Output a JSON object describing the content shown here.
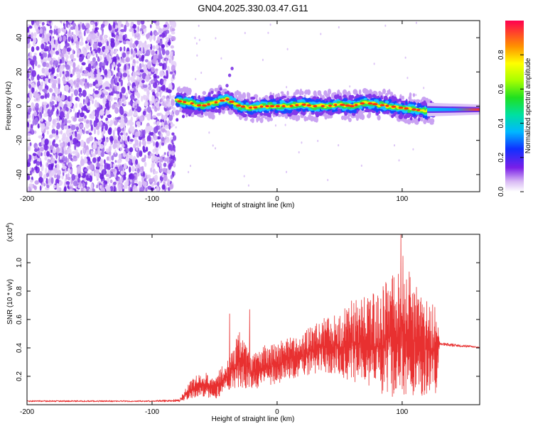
{
  "chart_data": [
    {
      "type": "heatmap",
      "title": "GN04.2025.330.03.47.G11",
      "xlabel": "Height of straight line (km)",
      "ylabel": "Frequency (Hz)",
      "xlim": [
        -200,
        162
      ],
      "ylim": [
        -50,
        50
      ],
      "xticks": [
        -200,
        -100,
        0,
        100
      ],
      "xtick_labels": [
        "-200",
        "-100",
        "0",
        "100"
      ],
      "yticks": [
        -40,
        -20,
        0,
        20,
        40
      ],
      "ytick_labels": [
        "-40",
        "-20",
        "0",
        "20",
        "40"
      ],
      "colorbar": {
        "label": "Normalized spectral amplitude",
        "range": [
          0,
          1
        ],
        "ticks": [
          0,
          0.2,
          0.4,
          0.6,
          0.8
        ],
        "tick_labels": [
          "0.0",
          "0.2",
          "0.4",
          "0.6",
          "0.8"
        ]
      },
      "ridge": {
        "x": [
          -80,
          -70,
          -60,
          -50,
          -40,
          -30,
          -20,
          -10,
          0,
          10,
          20,
          30,
          40,
          50,
          60,
          70,
          80,
          90,
          100,
          110,
          120,
          140,
          162
        ],
        "y": [
          3,
          2,
          0,
          2,
          4,
          0,
          -1,
          0,
          0,
          0,
          1,
          0,
          0,
          1,
          0,
          2,
          1,
          0,
          -1,
          -2,
          -3,
          -2,
          -2
        ]
      }
    },
    {
      "type": "line",
      "xlabel": "Height of straight line (km)",
      "ylabel": "SNR (10 * v/v)",
      "multiplier_base": "(x10",
      "multiplier_exp": "4",
      "multiplier_close": ")",
      "xlim": [
        -200,
        162
      ],
      "ylim": [
        0,
        1.2
      ],
      "xticks": [
        -200,
        -100,
        0,
        100
      ],
      "xtick_labels": [
        "-200",
        "-100",
        "0",
        "100"
      ],
      "yticks": [
        0.2,
        0.4,
        0.6,
        0.8,
        1.0
      ],
      "ytick_labels": [
        "0.2",
        "0.4",
        "0.6",
        "0.8",
        "1.0"
      ],
      "series": [
        {
          "name": "SNR",
          "color": "#e83030",
          "envelope_x": [
            -200,
            -100,
            -78,
            -70,
            -60,
            -50,
            -40,
            -30,
            -20,
            -10,
            0,
            10,
            20,
            30,
            40,
            50,
            60,
            70,
            80,
            90,
            100,
            110,
            120,
            127,
            130,
            140,
            162
          ],
          "envelope_low": [
            0.02,
            0.02,
            0.02,
            0.04,
            0.06,
            0.04,
            0.08,
            0.12,
            0.1,
            0.14,
            0.14,
            0.18,
            0.2,
            0.22,
            0.22,
            0.2,
            0.16,
            0.12,
            0.08,
            0.05,
            0.04,
            0.04,
            0.05,
            0.06,
            0.42,
            0.41,
            0.4
          ],
          "envelope_high": [
            0.03,
            0.03,
            0.04,
            0.16,
            0.24,
            0.2,
            0.32,
            0.52,
            0.36,
            0.42,
            0.44,
            0.48,
            0.5,
            0.58,
            0.62,
            0.64,
            0.74,
            0.78,
            0.8,
            0.9,
            1.06,
            0.9,
            0.74,
            0.7,
            0.44,
            0.43,
            0.41
          ],
          "peaks": [
            {
              "x": 99,
              "y": 1.2
            },
            {
              "x": 97,
              "y": 0.92
            },
            {
              "x": -22,
              "y": 0.67
            },
            {
              "x": -38,
              "y": 0.64
            }
          ]
        }
      ]
    }
  ]
}
